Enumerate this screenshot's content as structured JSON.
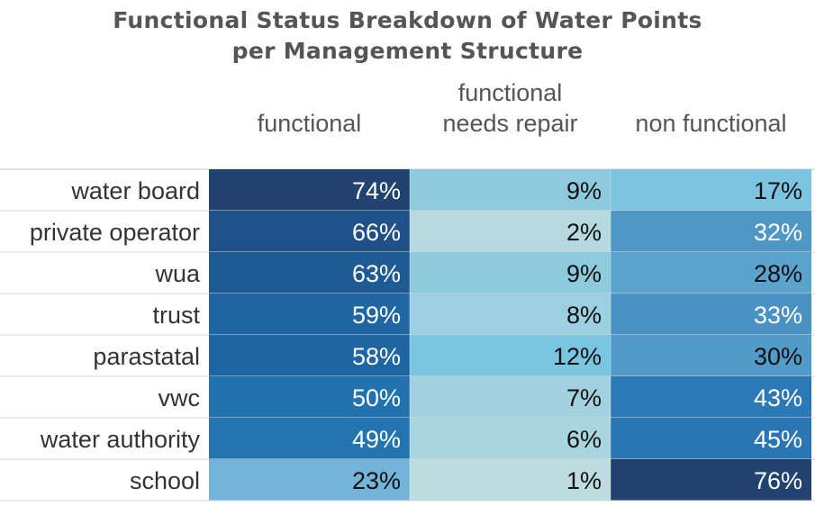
{
  "chart_data": {
    "type": "heatmap",
    "title": "Functional Status Breakdown of Water Points per Management Structure",
    "title_lines": [
      "Functional Status Breakdown of Water Points",
      "per Management Structure"
    ],
    "columns": [
      {
        "label_lines": [
          "functional"
        ]
      },
      {
        "label_lines": [
          "functional",
          "needs repair"
        ]
      },
      {
        "label_lines": [
          "non functional"
        ]
      }
    ],
    "rows": [
      "water board",
      "private operator",
      "wua",
      "trust",
      "parastatal",
      "vwc",
      "water authority",
      "school"
    ],
    "value_suffix": "%",
    "values": [
      [
        74,
        9,
        17
      ],
      [
        66,
        2,
        32
      ],
      [
        63,
        9,
        28
      ],
      [
        59,
        8,
        33
      ],
      [
        58,
        12,
        30
      ],
      [
        50,
        7,
        43
      ],
      [
        49,
        6,
        45
      ],
      [
        23,
        1,
        76
      ]
    ],
    "colors": [
      [
        "#22436f",
        "#8ecadd",
        "#7cc4e1"
      ],
      [
        "#1f5188",
        "#b5d9df",
        "#4f97c4"
      ],
      [
        "#1e5a94",
        "#8ecadd",
        "#5aa3cc"
      ],
      [
        "#1f66a2",
        "#9ccfe0",
        "#4a92c2"
      ],
      [
        "#1e66a2",
        "#79c5e2",
        "#529ac8"
      ],
      [
        "#2272ad",
        "#a2d1e0",
        "#2c79b5"
      ],
      [
        "#2474b0",
        "#a9d5e0",
        "#2a76b2"
      ],
      [
        "#74b3da",
        "#bedcdf",
        "#22436f"
      ]
    ],
    "light_text_color": "#ffffff",
    "dark_text_color": "#111111"
  }
}
